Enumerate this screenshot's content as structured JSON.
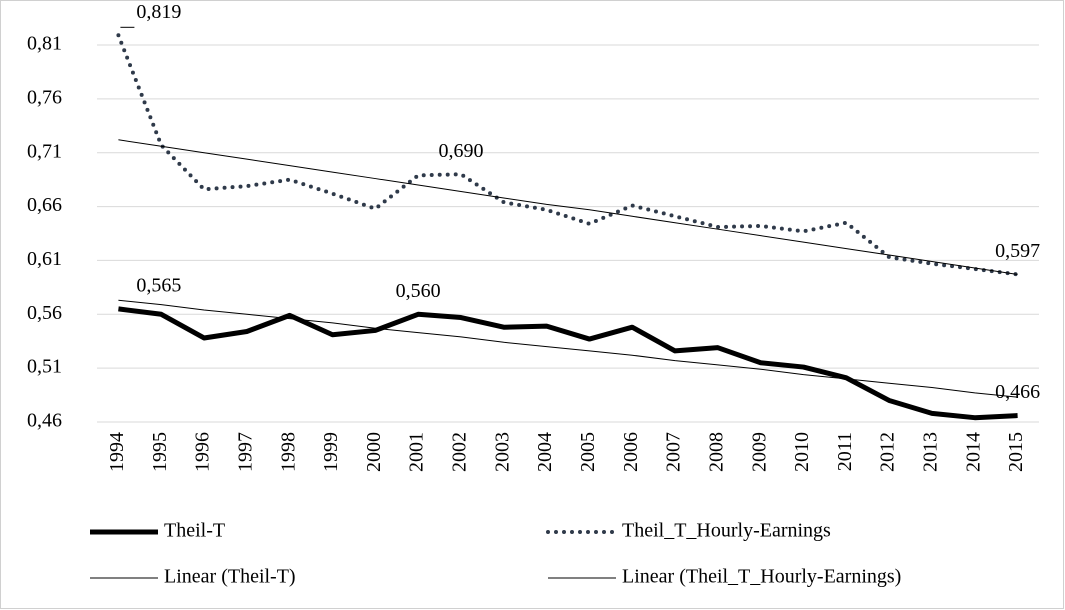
{
  "chart_data": {
    "type": "line",
    "categories": [
      "1994",
      "1995",
      "1996",
      "1997",
      "1998",
      "1999",
      "2000",
      "2001",
      "2002",
      "2003",
      "2004",
      "2005",
      "2006",
      "2007",
      "2008",
      "2009",
      "2010",
      "2011",
      "2012",
      "2013",
      "2014",
      "2015"
    ],
    "series": [
      {
        "name": "Theil-T",
        "color": "#000000",
        "style": "thick",
        "values": [
          0.565,
          0.56,
          0.538,
          0.544,
          0.559,
          0.541,
          0.545,
          0.56,
          0.557,
          0.548,
          0.549,
          0.537,
          0.548,
          0.526,
          0.529,
          0.515,
          0.511,
          0.501,
          0.48,
          0.468,
          0.464,
          0.466
        ],
        "value_labels": [
          "0,565",
          null,
          null,
          null,
          null,
          null,
          null,
          "0,560",
          null,
          null,
          null,
          null,
          null,
          null,
          null,
          null,
          null,
          null,
          null,
          null,
          null,
          "0,466"
        ]
      },
      {
        "name": "Theil_T_Hourly-Earnings",
        "color": "#2f3a4a",
        "style": "dotted",
        "values": [
          0.819,
          0.717,
          0.676,
          0.679,
          0.685,
          0.672,
          0.658,
          0.689,
          0.69,
          0.664,
          0.657,
          0.644,
          0.661,
          0.651,
          0.641,
          0.642,
          0.637,
          0.645,
          0.613,
          0.607,
          0.602,
          0.597
        ],
        "value_labels": [
          "0,819",
          null,
          null,
          null,
          null,
          null,
          null,
          null,
          "0,690",
          null,
          null,
          null,
          null,
          null,
          null,
          null,
          null,
          null,
          null,
          null,
          null,
          "0,597"
        ]
      },
      {
        "name": "Linear (Theil-T)",
        "color": "#000000",
        "style": "thin",
        "values": [
          0.573,
          0.569,
          0.564,
          0.56,
          0.556,
          0.552,
          0.547,
          0.543,
          0.539,
          0.534,
          0.53,
          0.526,
          0.522,
          0.517,
          0.513,
          0.509,
          0.504,
          0.5,
          0.496,
          0.492,
          0.487,
          0.483
        ]
      },
      {
        "name": "Linear (Theil_T_Hourly-Earnings)",
        "color": "#000000",
        "style": "thin",
        "values": [
          0.722,
          0.716,
          0.71,
          0.704,
          0.698,
          0.692,
          0.686,
          0.68,
          0.674,
          0.668,
          0.662,
          0.657,
          0.651,
          0.645,
          0.639,
          0.633,
          0.627,
          0.621,
          0.615,
          0.609,
          0.603,
          0.597
        ]
      }
    ],
    "ylim": [
      0.46,
      0.81
    ],
    "yticks": [
      {
        "value": 0.46,
        "label": "0,46"
      },
      {
        "value": 0.51,
        "label": "0,51"
      },
      {
        "value": 0.56,
        "label": "0,56"
      },
      {
        "value": 0.61,
        "label": "0,61"
      },
      {
        "value": 0.66,
        "label": "0,66"
      },
      {
        "value": 0.71,
        "label": "0,71"
      },
      {
        "value": 0.76,
        "label": "0,76"
      },
      {
        "value": 0.81,
        "label": "0,81"
      }
    ],
    "grid": true,
    "legend": "bottom"
  }
}
